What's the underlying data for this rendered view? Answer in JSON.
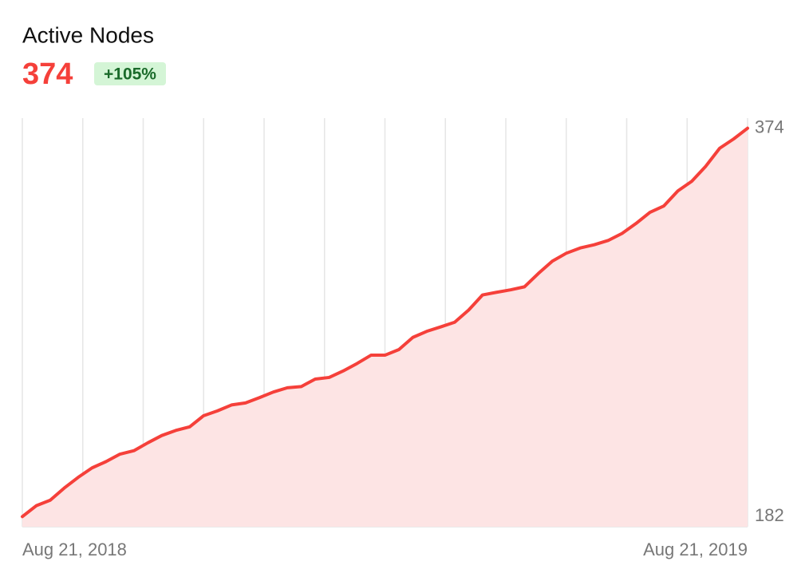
{
  "chart_data": {
    "type": "area",
    "title": "Active Nodes",
    "value": 374,
    "change": "+105%",
    "color": "#f5403a",
    "fill_color": "#fde4e4",
    "grid": true,
    "categories": [
      "Aug 21, 2018",
      null,
      null,
      null,
      null,
      null,
      null,
      null,
      null,
      null,
      null,
      null,
      null,
      null,
      null,
      null,
      null,
      null,
      null,
      null,
      null,
      null,
      null,
      null,
      null,
      null,
      null,
      null,
      null,
      null,
      null,
      null,
      null,
      null,
      null,
      null,
      null,
      null,
      null,
      null,
      null,
      null,
      null,
      null,
      null,
      null,
      null,
      null,
      null,
      null,
      null,
      null,
      "Aug 21, 2019"
    ],
    "values": [
      182,
      187.4,
      190.1,
      196.1,
      201.4,
      206.1,
      209.2,
      212.9,
      214.6,
      218.5,
      222.1,
      224.6,
      226.4,
      231.9,
      234.3,
      237.2,
      238.2,
      240.8,
      243.6,
      245.7,
      246.3,
      250.0,
      250.8,
      254.0,
      257.7,
      261.8,
      261.8,
      264.6,
      270.6,
      273.6,
      275.8,
      278.1,
      284.1,
      291.6,
      292.9,
      294.1,
      295.6,
      302.2,
      308.3,
      312.2,
      314.8,
      316.4,
      318.5,
      322.0,
      326.9,
      332.4,
      335.6,
      343.0,
      347.8,
      355.2,
      364.1,
      368.7,
      374
    ],
    "ylim": [
      177,
      379
    ],
    "yticks": [
      182,
      374
    ]
  }
}
